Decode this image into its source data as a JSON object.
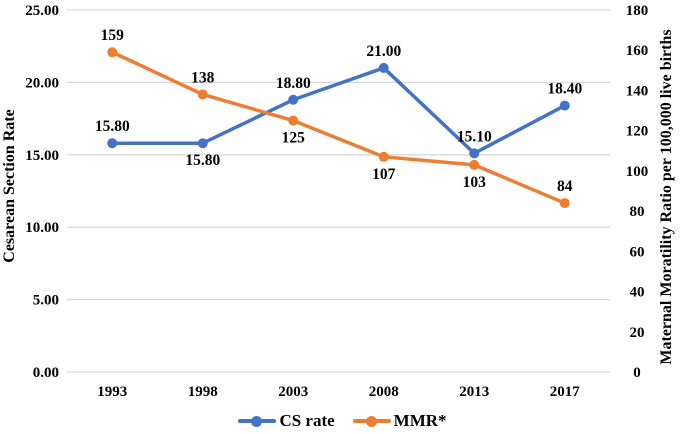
{
  "chart_data": {
    "type": "line",
    "categories": [
      "1993",
      "1998",
      "2003",
      "2008",
      "2013",
      "2017"
    ],
    "series": [
      {
        "name": "CS rate",
        "color": "#4472C4",
        "axis": "left",
        "values": [
          15.8,
          15.8,
          18.8,
          21.0,
          15.1,
          18.4
        ],
        "labels": [
          "15.80",
          "15.80",
          "18.80",
          "21.00",
          "15.10",
          "18.40"
        ],
        "label_positions": [
          "above",
          "below",
          "above",
          "above",
          "above",
          "above"
        ]
      },
      {
        "name": "MMR*",
        "color": "#ED7D31",
        "axis": "right",
        "values": [
          159,
          138,
          125,
          107,
          103,
          84
        ],
        "labels": [
          "159",
          "138",
          "125",
          "107",
          "103",
          "84"
        ],
        "label_positions": [
          "above",
          "above",
          "below",
          "below",
          "below",
          "above"
        ]
      }
    ],
    "axes": {
      "left": {
        "title": "Cesarean Section Rate",
        "min": 0,
        "max": 25,
        "tick_values": [
          25,
          20,
          15,
          10,
          5,
          0
        ],
        "ticks": [
          "25.00",
          "20.00",
          "15.00",
          "10.00",
          "5.00",
          "0.00"
        ],
        "gridlines": true
      },
      "right": {
        "title": "Maternal Moratility Ratio per 100,000 live births",
        "min": 0,
        "max": 180,
        "tick_values": [
          180,
          160,
          140,
          120,
          100,
          80,
          60,
          40,
          20,
          0
        ],
        "ticks": [
          "180",
          "160",
          "140",
          "120",
          "100",
          "80",
          "60",
          "40",
          "20",
          "0"
        ],
        "gridlines": false
      }
    },
    "legend": {
      "position": "bottom",
      "items": [
        {
          "label": "CS rate",
          "color": "#4472C4"
        },
        {
          "label": "MMR*",
          "color": "#ED7D31"
        }
      ]
    },
    "grid": {
      "color": "#D9D9D9",
      "horizontal": true,
      "vertical": false
    },
    "style": {
      "background": "#FFFFFF",
      "text_color": "#000000",
      "line_width": 3.5,
      "marker_radius": 5
    }
  }
}
